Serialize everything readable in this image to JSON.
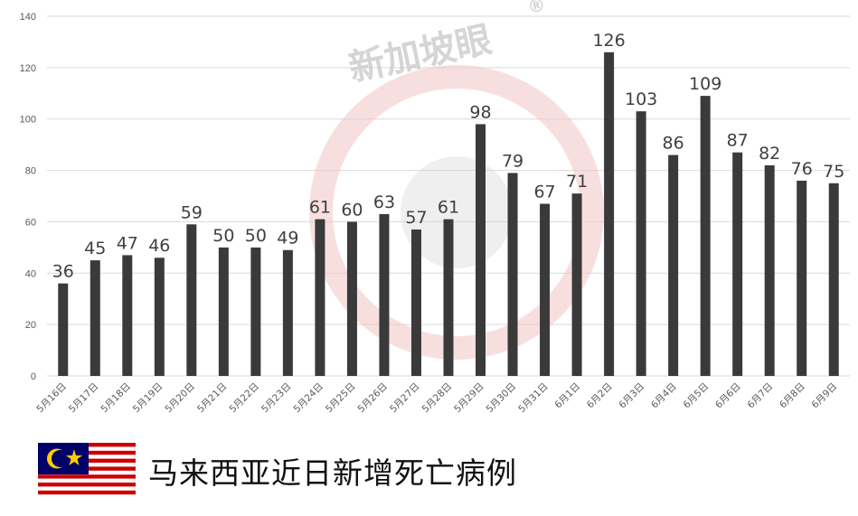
{
  "watermark": {
    "text": "新加坡眼",
    "mark": "®"
  },
  "caption": "马来西亚近日新增死亡病例",
  "colors": {
    "bar": "#3a3a3a",
    "grid": "#d9d9d9",
    "tick": "#595959",
    "label": "#404040"
  },
  "flag": {
    "name": "malaysia-flag-icon"
  },
  "chart_data": {
    "type": "bar",
    "title": "",
    "xlabel": "",
    "ylabel": "",
    "ylim": [
      0,
      140
    ],
    "yticks": [
      "0",
      "20",
      "40",
      "60",
      "80",
      "100",
      "120",
      "140"
    ],
    "grid": true,
    "categories": [
      "5月16日",
      "5月17日",
      "5月18日",
      "5月19日",
      "5月20日",
      "5月21日",
      "5月22日",
      "5月23日",
      "5月24日",
      "5月25日",
      "5月26日",
      "5月27日",
      "5月28日",
      "5月29日",
      "5月30日",
      "5月31日",
      "6月1日",
      "6月2日",
      "6月3日",
      "6月4日",
      "6月5日",
      "6月6日",
      "6月7日",
      "6月8日",
      "6月9日"
    ],
    "values": [
      36,
      45,
      47,
      46,
      59,
      50,
      50,
      49,
      61,
      60,
      63,
      57,
      61,
      98,
      79,
      67,
      71,
      126,
      103,
      86,
      109,
      87,
      82,
      76,
      75
    ]
  }
}
